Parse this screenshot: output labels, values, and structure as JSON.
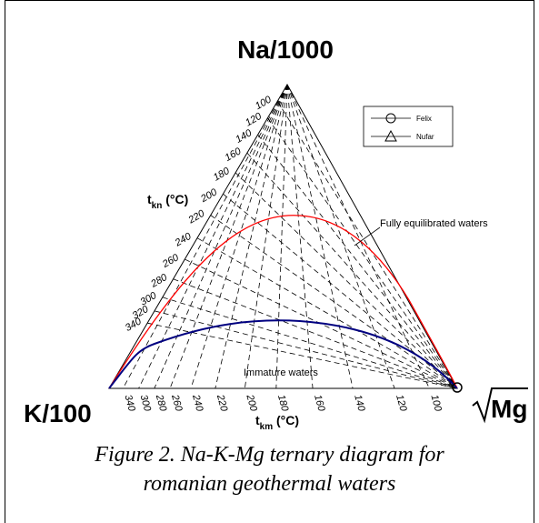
{
  "vertices": {
    "top": "Na/1000",
    "left": "K/100",
    "right": "Mg"
  },
  "axes": {
    "tkn": {
      "label_main": "t",
      "label_sub": "kn",
      "label_unit": " (°C)",
      "ticks": [
        "100",
        "120",
        "140",
        "160",
        "180",
        "200",
        "220",
        "240",
        "260",
        "280",
        "300",
        "320",
        "340"
      ]
    },
    "tkm": {
      "label_main": "t",
      "label_sub": "km",
      "label_unit": " (°C)",
      "ticks": [
        "340",
        "300",
        "280",
        "260",
        "240",
        "220",
        "200",
        "180",
        "160",
        "140",
        "120",
        "100"
      ]
    }
  },
  "annotations": {
    "fully": "Fully equilibrated waters",
    "immature": "Immature waters"
  },
  "legend": [
    {
      "label": "Felix",
      "marker": "circle"
    },
    {
      "label": "Nufar",
      "marker": "triangle"
    }
  ],
  "colors": {
    "full_equilibrium": "#ff0000",
    "partial_equilibrium": "#000080"
  },
  "caption": {
    "line1": "Figure 2. Na-K-Mg ternary diagram for",
    "line2": "romanian geothermal waters"
  }
}
